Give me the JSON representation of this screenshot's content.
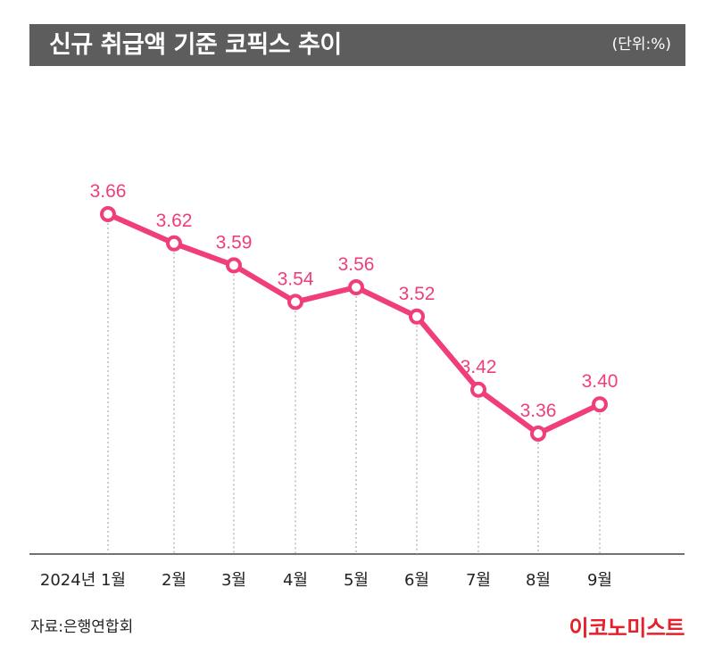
{
  "header": {
    "title": "신규 취급액 기준 코픽스 추이",
    "unit": "(단위:%)"
  },
  "footer": {
    "source": "자료:은행연합회",
    "logo": "이코노미스트"
  },
  "colors": {
    "line": "#ef3e7a",
    "label": "#ef3e7a",
    "title_bar": "#5d5d5d",
    "logo": "#e5202a"
  },
  "chart_data": {
    "type": "line",
    "categories": [
      "2024년 1월",
      "2월",
      "3월",
      "4월",
      "5월",
      "6월",
      "7월",
      "8월",
      "9월"
    ],
    "series": [
      {
        "values": [
          3.66,
          3.62,
          3.59,
          3.54,
          3.56,
          3.52,
          3.42,
          3.36,
          3.4
        ]
      }
    ],
    "data_labels": [
      "3.66",
      "3.62",
      "3.59",
      "3.54",
      "3.56",
      "3.52",
      "3.42",
      "3.36",
      "3.40"
    ],
    "title": "신규 취급액 기준 코픽스 추이",
    "ylabel": "",
    "xlabel": "",
    "ylim": [
      3.36,
      3.66
    ],
    "grid": false,
    "drop_lines": true
  }
}
